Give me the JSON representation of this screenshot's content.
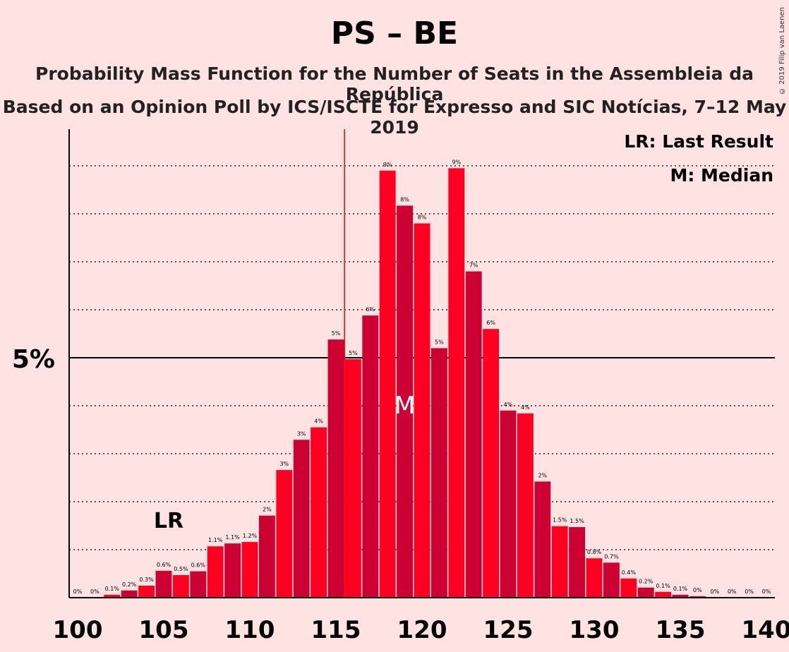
{
  "title": "PS – BE",
  "subtitle": "Probability Mass Function for the Number of Seats in the Assembleia da República",
  "subtitle2": "Based on an Opinion Poll by ICS/ISCTE for Expresso and SIC Notícias, 7–12 May 2019",
  "copyright": "© 2019 Filip van Laenen",
  "legend": {
    "lr": "LR: Last Result",
    "m": "M: Median"
  },
  "markers": {
    "last_result_label": "LR",
    "last_result_seat": 116,
    "lr_text_seat": 105,
    "median_label": "M",
    "median_seat": 119
  },
  "colors": {
    "background": "#ffe2e2",
    "ps": "#ff0022",
    "be": "#cc0033",
    "lr_line": "#ff0000"
  },
  "chart_data": {
    "type": "bar",
    "xlabel": "",
    "ylabel": "",
    "xlim": [
      100,
      140
    ],
    "ylim": [
      0,
      9.75
    ],
    "x_ticks": [
      "100",
      "105",
      "110",
      "115",
      "120",
      "125",
      "130",
      "135",
      "140"
    ],
    "y_ticks": [
      {
        "value": 5,
        "label": "5%"
      }
    ],
    "gridlines": "dotted every 1%",
    "x": [
      100,
      101,
      102,
      103,
      104,
      105,
      106,
      107,
      108,
      109,
      110,
      111,
      112,
      113,
      114,
      115,
      116,
      117,
      118,
      119,
      120,
      121,
      122,
      123,
      124,
      125,
      126,
      127,
      128,
      129,
      130,
      131,
      132,
      133,
      134,
      135,
      136,
      137,
      138,
      139,
      140
    ],
    "values": [
      0,
      0,
      0.06,
      0.15,
      0.25,
      0.56,
      0.47,
      0.55,
      1.07,
      1.13,
      1.16,
      1.71,
      2.66,
      3.29,
      3.55,
      5.38,
      4.97,
      5.88,
      8.9,
      8.17,
      7.8,
      5.2,
      8.95,
      6.8,
      5.6,
      3.9,
      3.84,
      2.42,
      1.49,
      1.47,
      0.82,
      0.73,
      0.4,
      0.21,
      0.12,
      0.06,
      0.03,
      0,
      0,
      0,
      0
    ],
    "labels": [
      "0%",
      "0%",
      "0.1%",
      "0.2%",
      "0.3%",
      "0.6%",
      "0.5%",
      "0.6%",
      "1.1%",
      "1.1%",
      "1.2%",
      "2%",
      "3%",
      "3%",
      "4%",
      "5%",
      "5%",
      "6%",
      "9%",
      "8%",
      "8%",
      "5%",
      "9%",
      "7%",
      "6%",
      "4%",
      "4%",
      "2%",
      "1.5%",
      "1.5%",
      "0.8%",
      "0.7%",
      "0.4%",
      "0.2%",
      "0.1%",
      "0.1%",
      "0%",
      "0%",
      "0%",
      "0%",
      "0%"
    ]
  }
}
